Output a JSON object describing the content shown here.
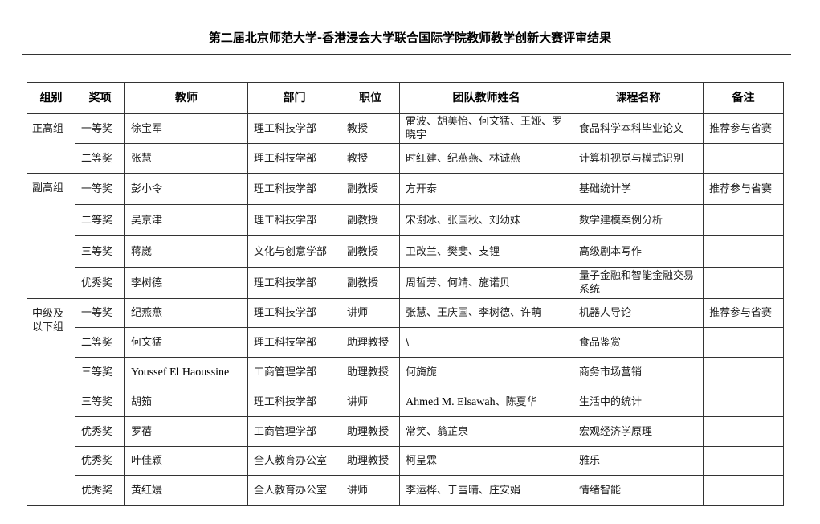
{
  "title": "第二届北京师范大学-香港浸会大学联合国际学院教师教学创新大赛评审结果",
  "headers": [
    "组别",
    "奖项",
    "教师",
    "部门",
    "职位",
    "团队教师姓名",
    "课程名称",
    "备注"
  ],
  "groups": [
    {
      "name": "正高组",
      "rows": [
        {
          "award": "一等奖",
          "teacher": "徐宝军",
          "dept": "理工科技学部",
          "title": "教授",
          "team": "雷波、胡美怡、何文猛、王娅、罗晓宇",
          "course": "食品科学本科毕业论文",
          "note": "推荐参与省赛"
        },
        {
          "award": "二等奖",
          "teacher": "张慧",
          "dept": "理工科技学部",
          "title": "教授",
          "team": "时红建、纪燕燕、林诚燕",
          "course": "计算机视觉与模式识别",
          "note": ""
        }
      ]
    },
    {
      "name": "副高组",
      "rows": [
        {
          "award": "一等奖",
          "teacher": "彭小令",
          "dept": "理工科技学部",
          "title": "副教授",
          "team": "方开泰",
          "course": "基础统计学",
          "note": "推荐参与省赛"
        },
        {
          "award": "二等奖",
          "teacher": "吴京津",
          "dept": "理工科技学部",
          "title": "副教授",
          "team": "宋谢冰、张国秋、刘幼妹",
          "course": "数学建模案例分析",
          "note": ""
        },
        {
          "award": "三等奖",
          "teacher": "蒋崴",
          "dept": "文化与创意学部",
          "title": "副教授",
          "team": "卫改兰、樊斐、支锂",
          "course": "高级剧本写作",
          "note": ""
        },
        {
          "award": "优秀奖",
          "teacher": "李树德",
          "dept": "理工科技学部",
          "title": "副教授",
          "team": "周哲芳、何靖、施诺贝",
          "course": "量子金融和智能金融交易系统",
          "note": ""
        }
      ]
    },
    {
      "name": "中级及以下组",
      "rows": [
        {
          "award": "一等奖",
          "teacher": "纪燕燕",
          "dept": "理工科技学部",
          "title": "讲师",
          "team": "张慧、王庆国、李树德、许萌",
          "course": "机器人导论",
          "note": "推荐参与省赛"
        },
        {
          "award": "二等奖",
          "teacher": "何文猛",
          "dept": "理工科技学部",
          "title": "助理教授",
          "team": "\\",
          "course": "食品鉴赏",
          "note": ""
        },
        {
          "award": "三等奖",
          "teacher": "Youssef El Haoussine",
          "dept": "工商管理学部",
          "title": "助理教授",
          "team": "何旖旎",
          "course": "商务市场营销",
          "note": ""
        },
        {
          "award": "三等奖",
          "teacher": "胡筎",
          "dept": "理工科技学部",
          "title": "讲师",
          "team": "Ahmed M. Elsawah、陈夏华",
          "course": "生活中的统计",
          "note": ""
        },
        {
          "award": "优秀奖",
          "teacher": "罗蓓",
          "dept": "工商管理学部",
          "title": "助理教授",
          "team": "常笑、翁芷泉",
          "course": "宏观经济学原理",
          "note": ""
        },
        {
          "award": "优秀奖",
          "teacher": "叶佳颖",
          "dept": "全人教育办公室",
          "title": "助理教授",
          "team": "柯呈霖",
          "course": "雅乐",
          "note": ""
        },
        {
          "award": "优秀奖",
          "teacher": "黄红嫚",
          "dept": "全人教育办公室",
          "title": "讲师",
          "team": "李运桦、于雪晴、庄安娟",
          "course": "情绪智能",
          "note": ""
        }
      ]
    }
  ]
}
